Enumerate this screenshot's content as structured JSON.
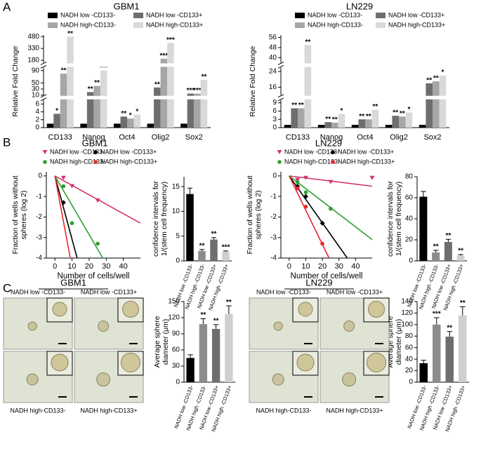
{
  "panel_labels": [
    "A",
    "B",
    "C"
  ],
  "micrographs": [
    {
      "title": "GBM1",
      "labels": [
        "NADH low -CD133-",
        "NADH low -CD133+",
        "NADH high-CD133-",
        "NADH high-CD133+"
      ]
    },
    {
      "title": "LN229",
      "labels": [
        "NADH low -CD133-",
        "NADH low -CD133+",
        "NADH high-CD133-",
        "NADH high-CD133+"
      ]
    }
  ],
  "chart_data": [
    {
      "type": "bar",
      "title": "GBM1",
      "ylabel": [
        "Relative Fold Change"
      ],
      "categories": [
        "CD133",
        "Nanog",
        "Oct4",
        "Olig2",
        "Sox2"
      ],
      "series": [
        {
          "name": "NADH low -CD133-",
          "color": "#000000",
          "values": [
            1,
            1,
            1,
            1,
            1
          ]
        },
        {
          "name": "NADH low -CD133+",
          "color": "#6e6e6e",
          "values": [
            3.5,
            20,
            2.8,
            35,
            15
          ],
          "significance": [
            "*",
            "**",
            "**",
            "**",
            "***"
          ]
        },
        {
          "name": "NADH high-CD133-",
          "color": "#a6a6a6",
          "values": [
            80,
            40,
            2.3,
            200,
            15
          ],
          "significance": [
            "**",
            "**",
            "*",
            "***",
            "***"
          ]
        },
        {
          "name": "NADH high-CD133+",
          "color": "#d9d9d9",
          "values": [
            480,
            90,
            3.3,
            400,
            60
          ],
          "significance": [
            "**",
            "***",
            "*",
            "***",
            "**"
          ]
        }
      ],
      "ysegments": [
        {
          "ylim": [
            0,
            7
          ],
          "yticks": [
            0,
            2,
            4,
            6
          ]
        },
        {
          "ylim": [
            10,
            100
          ],
          "yticks": [
            10,
            30,
            50,
            90
          ]
        },
        {
          "ylim": [
            150,
            500
          ],
          "yticks": [
            180,
            330,
            480
          ]
        }
      ]
    },
    {
      "type": "bar",
      "title": "LN229",
      "ylabel": [
        "Relative Fold Change"
      ],
      "categories": [
        "CD133",
        "Nanog",
        "Oct4",
        "Olig2",
        "Sox2"
      ],
      "series": [
        {
          "name": "NADH low -CD133-",
          "color": "#000000",
          "values": [
            1,
            1,
            1,
            1,
            1
          ]
        },
        {
          "name": "NADH low -CD133+",
          "color": "#6e6e6e",
          "values": [
            7,
            2,
            3,
            4.3,
            18
          ],
          "significance": [
            "**",
            "**",
            "**",
            "**",
            "**"
          ]
        },
        {
          "name": "NADH high-CD133-",
          "color": "#a6a6a6",
          "values": [
            7,
            1.8,
            3,
            4,
            19
          ],
          "significance": [
            "**",
            "**",
            "**",
            "**",
            "**"
          ]
        },
        {
          "name": "NADH high-CD133+",
          "color": "#d9d9d9",
          "values": [
            50,
            5,
            6.5,
            5.5,
            22
          ],
          "significance": [
            "**",
            "*",
            "**",
            "*",
            "*"
          ]
        }
      ],
      "ysegments": [
        {
          "ylim": [
            0,
            10
          ],
          "yticks": [
            0,
            3,
            6,
            9
          ]
        },
        {
          "ylim": [
            12,
            26
          ],
          "yticks": [
            16,
            24
          ]
        },
        {
          "ylim": [
            36,
            58
          ],
          "yticks": [
            40,
            48,
            56
          ]
        }
      ]
    },
    {
      "type": "line",
      "title": "GBM1",
      "xlabel": "Number of cells/well",
      "ylabel": [
        "Fraction of wells without",
        "spheres (log 2)"
      ],
      "xlim": [
        -5,
        50
      ],
      "xticks": [
        0,
        10,
        20,
        30,
        40
      ],
      "ylim": [
        -4,
        0.2
      ],
      "yticks": [
        0,
        -1,
        -2,
        -3,
        -4
      ],
      "series": [
        {
          "name": "NADH low -CD133-",
          "color": "#d6336c",
          "marker": "triangle",
          "x": [
            5,
            10,
            25
          ],
          "values": [
            -0.1,
            -0.5,
            -1.2
          ],
          "fit_x": [
            0,
            50
          ],
          "fit_values": [
            0,
            -2.3
          ]
        },
        {
          "name": "NADH low -CD133+",
          "color": "#000000",
          "marker": "diamond",
          "x": [
            5
          ],
          "values": [
            -1.3
          ],
          "fit_x": [
            0,
            13
          ],
          "fit_values": [
            0,
            -4
          ]
        },
        {
          "name": "NADH high-CD133-",
          "color": "#2e9e2e",
          "marker": "circle",
          "x": [
            5,
            10,
            25
          ],
          "values": [
            -0.5,
            -2.3,
            -3.3
          ],
          "fit_x": [
            0,
            28
          ],
          "fit_values": [
            0,
            -4
          ]
        },
        {
          "name": "NADH high-CD133+",
          "color": "#e8262a",
          "marker": "circle",
          "x": [],
          "values": [],
          "fit_x": [
            0,
            9
          ],
          "fit_values": [
            0,
            -4
          ]
        }
      ]
    },
    {
      "type": "bar",
      "ylabel": [
        "confidence intervals for",
        "1/(stem cell frequency)"
      ],
      "categories": [
        "NADH low -CD133-",
        "NADH high -CD133-",
        "NADH low -CD133+",
        "NADH high -CD133+"
      ],
      "colors": [
        "#000000",
        "#8c8c8c",
        "#6e6e6e",
        "#cfcfcf"
      ],
      "values": [
        13.5,
        2,
        4.3,
        1.8
      ],
      "errors": [
        1.2,
        0.3,
        0.4,
        0.2
      ],
      "significance": [
        null,
        "**",
        "**",
        "***"
      ],
      "ylim": [
        0,
        17
      ],
      "yticks": [
        0,
        5,
        10,
        15
      ]
    },
    {
      "type": "line",
      "title": "LN229",
      "xlabel": "Number of cells/well",
      "ylabel": [
        "Fraction of wells without",
        "spheres (log 2)"
      ],
      "xlim": [
        -5,
        50
      ],
      "xticks": [
        0,
        10,
        20,
        30,
        40
      ],
      "ylim": [
        -4,
        0.2
      ],
      "yticks": [
        0,
        -1,
        -2,
        -3,
        -4
      ],
      "series": [
        {
          "name": "NADH low -CD133-",
          "color": "#d6336c",
          "marker": "triangle",
          "x": [
            5,
            10,
            25,
            50
          ],
          "values": [
            -0.2,
            -0.1,
            -0.3,
            -0.1
          ],
          "fit_x": [
            0,
            50
          ],
          "fit_values": [
            0,
            -0.5
          ]
        },
        {
          "name": "NADH low -CD133+",
          "color": "#000000",
          "marker": "diamond",
          "x": [
            5,
            10,
            20
          ],
          "values": [
            -0.5,
            -1,
            -2.3
          ],
          "fit_x": [
            0,
            35
          ],
          "fit_values": [
            0,
            -4
          ]
        },
        {
          "name": "NADH high-CD133-",
          "color": "#2e9e2e",
          "marker": "circle",
          "x": [
            5,
            10,
            25
          ],
          "values": [
            -0.3,
            -0.8,
            -1.6
          ],
          "fit_x": [
            0,
            50
          ],
          "fit_values": [
            0,
            -3.1
          ]
        },
        {
          "name": "NADH high-CD133+",
          "color": "#e8262a",
          "marker": "circle",
          "x": [
            5,
            10,
            20
          ],
          "values": [
            -0.6,
            -1.5,
            -3.3
          ],
          "fit_x": [
            0,
            24
          ],
          "fit_values": [
            0,
            -4
          ]
        }
      ]
    },
    {
      "type": "bar",
      "ylabel": [
        "confidence intervals for",
        "1/(stem cell frequency)"
      ],
      "categories": [
        "NADH low -CD133-",
        "NADH high -CD133-",
        "NADH low -CD133+",
        "NADH high -CD133+"
      ],
      "colors": [
        "#000000",
        "#8c8c8c",
        "#6e6e6e",
        "#cfcfcf"
      ],
      "values": [
        61,
        8,
        18,
        5
      ],
      "errors": [
        5,
        2,
        2.5,
        1
      ],
      "significance": [
        null,
        "**",
        "**",
        "**"
      ],
      "ylim": [
        0,
        80
      ],
      "yticks": [
        0,
        20,
        40,
        60,
        80
      ]
    },
    {
      "type": "bar",
      "ylabel": [
        "Average sphere",
        "diameter (μm)"
      ],
      "categories": [
        "NADH low -CD133-",
        "NADH high -CD133-",
        "NADH low -CD133+",
        "NADH high -CD133+"
      ],
      "colors": [
        "#000000",
        "#8c8c8c",
        "#6e6e6e",
        "#cfcfcf"
      ],
      "values": [
        45,
        108,
        99,
        127
      ],
      "errors": [
        6,
        10,
        8,
        15
      ],
      "significance": [
        null,
        "**",
        "**",
        "**"
      ],
      "ylim": [
        0,
        150
      ],
      "yticks": [
        0,
        30,
        60,
        90,
        120,
        150
      ]
    },
    {
      "type": "bar",
      "ylabel": [
        "Average sphere",
        "diameter (μm)"
      ],
      "categories": [
        "NADH low -CD133-",
        "NADH high -CD133-",
        "NADH low -CD133+",
        "NADH high -CD133+"
      ],
      "colors": [
        "#000000",
        "#8c8c8c",
        "#6e6e6e",
        "#cfcfcf"
      ],
      "values": [
        33,
        100,
        79,
        116
      ],
      "errors": [
        5,
        12,
        9,
        15
      ],
      "significance": [
        null,
        "***",
        "**",
        "**"
      ],
      "ylim": [
        0,
        140
      ],
      "yticks": [
        0,
        20,
        40,
        60,
        80,
        100,
        120,
        140
      ]
    }
  ]
}
